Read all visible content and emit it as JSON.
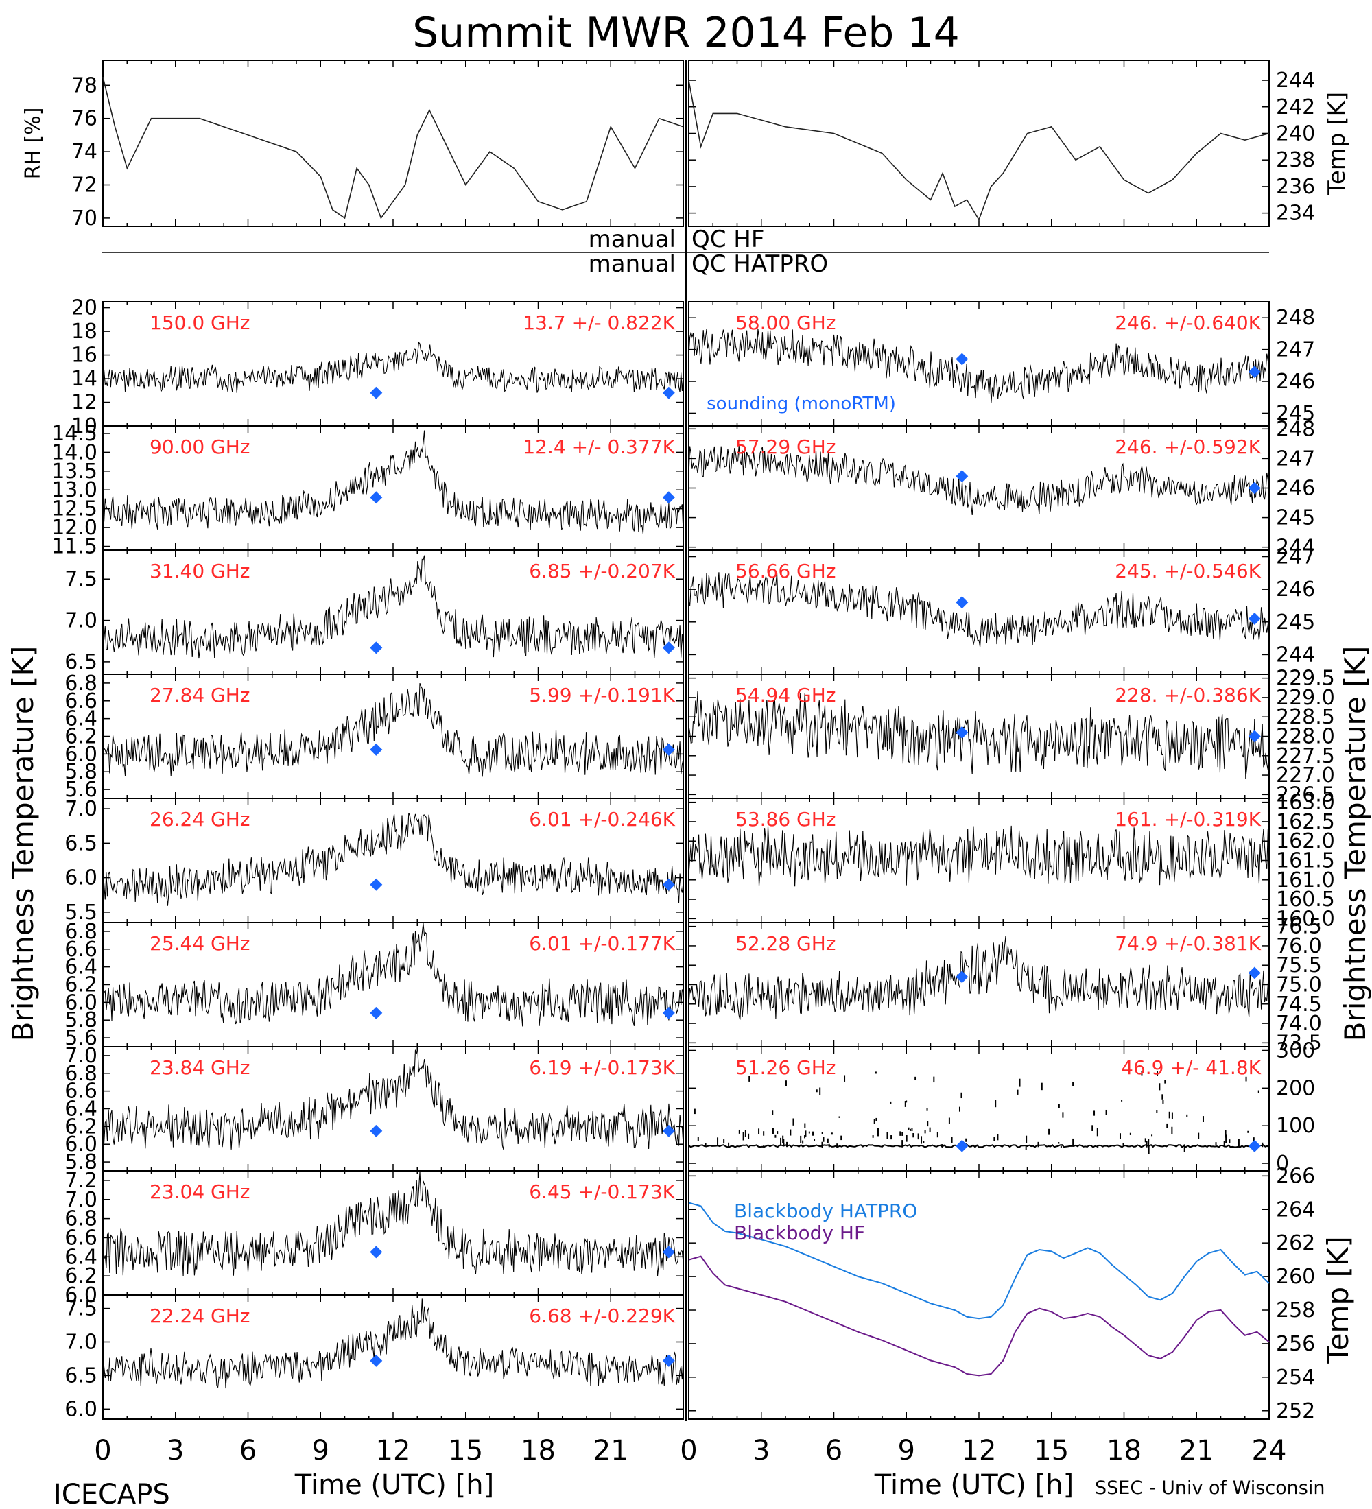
{
  "title": "Summit MWR 2014 Feb 14",
  "footer": {
    "left": "ICECAPS",
    "right": "SSEC - Univ of Wisconsin"
  },
  "axes": {
    "left_ylabel": "Brightness Temperature [K]",
    "right_ylabel": "Brightness Temperature [K]",
    "xlabel": "Time (UTC) [h]",
    "xticks": [
      "0",
      "3",
      "6",
      "9",
      "12",
      "15",
      "18",
      "21",
      "24"
    ],
    "xticks_left": [
      "0",
      "3",
      "6",
      "9",
      "12",
      "15",
      "18",
      "21"
    ]
  },
  "qc": {
    "line1_left": "manual",
    "line1_right": "QC HF",
    "line2_left": "manual",
    "line2_right": "QC HATPRO"
  },
  "colors": {
    "label": "#ff2a2a",
    "marker": "#1a66ff",
    "hatpro": "#1a7de0",
    "hf": "#6b1a8a",
    "trace": "#000000"
  },
  "chart_data": [
    {
      "type": "line",
      "id": "rh",
      "ylabel": "RH [%]",
      "ylim": [
        69.5,
        79.5
      ],
      "yticks": [
        70,
        72,
        74,
        76,
        78
      ],
      "xlim": [
        0,
        24
      ],
      "series": [
        {
          "x": [
            0,
            0.5,
            1,
            2,
            4,
            6,
            8,
            9,
            9.5,
            10,
            10.5,
            11,
            11.5,
            12,
            12.5,
            13,
            13.5,
            14,
            15,
            16,
            17,
            18,
            19,
            20,
            21,
            22,
            23,
            24
          ],
          "y": [
            78.5,
            75.5,
            73,
            76,
            76,
            75,
            74,
            72.5,
            70.5,
            70,
            73,
            72,
            70,
            71,
            72,
            75,
            76.5,
            75,
            72,
            74,
            73,
            71,
            70.5,
            71,
            75.5,
            73,
            76,
            75.5
          ]
        }
      ]
    },
    {
      "type": "line",
      "id": "temp",
      "ylabel": "Temp [K]",
      "ylim": [
        233,
        245.5
      ],
      "yticks": [
        234,
        236,
        238,
        240,
        242,
        244
      ],
      "xlim": [
        0,
        24
      ],
      "series": [
        {
          "x": [
            0,
            0.5,
            1,
            2,
            4,
            6,
            8,
            9,
            10,
            10.5,
            11,
            11.5,
            12,
            12.5,
            13,
            14,
            15,
            16,
            17,
            18,
            19,
            20,
            21,
            22,
            23,
            24
          ],
          "y": [
            244,
            239,
            241.5,
            241.5,
            240.5,
            240,
            238.5,
            236.5,
            235,
            237,
            234.5,
            235,
            233.5,
            236,
            237,
            240,
            240.5,
            238,
            239,
            236.5,
            235.5,
            236.5,
            238.5,
            240,
            239.5,
            240
          ]
        }
      ]
    },
    {
      "type": "line",
      "id": "ch150",
      "freq_label": "150.0 GHz",
      "stat_label": "13.7 +/- 0.822K",
      "ylim": [
        10,
        20.5
      ],
      "yticks": [
        "10",
        "12",
        "14",
        "16",
        "18",
        "20"
      ],
      "xlim": [
        0,
        24
      ],
      "base": [
        14.0,
        14.0,
        14.0,
        14.2,
        16.5,
        14.0,
        14.0,
        14.0,
        14.0
      ],
      "noise": 1.8,
      "markers": [
        {
          "x": 11.3,
          "y": 12.8
        },
        {
          "x": 23.4,
          "y": 12.8
        }
      ]
    },
    {
      "type": "line",
      "id": "ch90",
      "freq_label": "90.00 GHz",
      "stat_label": "12.4 +/- 0.377K",
      "ylim": [
        11.4,
        14.7
      ],
      "yticks": [
        "11.5",
        "12.0",
        "12.5",
        "13.0",
        "13.5",
        "14.0",
        "14.5"
      ],
      "xlim": [
        0,
        24
      ],
      "base": [
        12.4,
        12.4,
        12.4,
        12.6,
        14.3,
        12.4,
        12.4,
        12.3,
        12.3
      ],
      "noise": 0.7,
      "markers": [
        {
          "x": 11.3,
          "y": 12.8
        },
        {
          "x": 23.4,
          "y": 12.8
        }
      ]
    },
    {
      "type": "line",
      "id": "ch31",
      "freq_label": "31.40 GHz",
      "stat_label": "6.85 +/-0.207K",
      "ylim": [
        6.35,
        7.85
      ],
      "yticks": [
        "6.5",
        "7.0",
        "7.5"
      ],
      "xlim": [
        0,
        24
      ],
      "base": [
        6.8,
        6.8,
        6.8,
        6.9,
        7.6,
        6.8,
        6.8,
        6.8,
        6.8
      ],
      "noise": 0.4,
      "markers": [
        {
          "x": 11.3,
          "y": 6.67
        },
        {
          "x": 23.4,
          "y": 6.67
        }
      ]
    },
    {
      "type": "line",
      "id": "ch27",
      "freq_label": "27.84 GHz",
      "stat_label": "5.99 +/-0.191K",
      "ylim": [
        5.5,
        6.9
      ],
      "yticks": [
        "5.6",
        "5.8",
        "6.0",
        "6.2",
        "6.4",
        "6.6",
        "6.8"
      ],
      "xlim": [
        0,
        24
      ],
      "base": [
        6.0,
        6.0,
        6.0,
        6.1,
        6.7,
        6.0,
        6.0,
        6.0,
        6.0
      ],
      "noise": 0.4,
      "markers": [
        {
          "x": 11.3,
          "y": 6.05
        },
        {
          "x": 23.4,
          "y": 6.05
        }
      ]
    },
    {
      "type": "line",
      "id": "ch26",
      "freq_label": "26.24 GHz",
      "stat_label": "6.01 +/-0.246K",
      "ylim": [
        5.35,
        7.15
      ],
      "yticks": [
        "5.5",
        "6.0",
        "6.5",
        "7.0"
      ],
      "xlim": [
        0,
        24
      ],
      "base": [
        5.9,
        5.9,
        6.0,
        6.2,
        6.9,
        6.0,
        6.0,
        6.0,
        5.9
      ],
      "noise": 0.45,
      "markers": [
        {
          "x": 11.3,
          "y": 5.9
        },
        {
          "x": 23.4,
          "y": 5.9
        }
      ]
    },
    {
      "type": "line",
      "id": "ch25",
      "freq_label": "25.44 GHz",
      "stat_label": "6.01 +/-0.177K",
      "ylim": [
        5.5,
        6.9
      ],
      "yticks": [
        "5.6",
        "5.8",
        "6.0",
        "6.2",
        "6.4",
        "6.6",
        "6.8"
      ],
      "xlim": [
        0,
        24
      ],
      "base": [
        6.0,
        6.0,
        6.0,
        6.1,
        6.7,
        6.0,
        6.0,
        6.0,
        6.0
      ],
      "noise": 0.4,
      "markers": [
        {
          "x": 11.3,
          "y": 5.88
        },
        {
          "x": 23.4,
          "y": 5.88
        }
      ]
    },
    {
      "type": "line",
      "id": "ch23_84",
      "freq_label": "23.84 GHz",
      "stat_label": "6.19 +/-0.173K",
      "ylim": [
        5.7,
        7.1
      ],
      "yticks": [
        "5.8",
        "6.0",
        "6.2",
        "6.4",
        "6.6",
        "6.8",
        "7.0"
      ],
      "xlim": [
        0,
        24
      ],
      "base": [
        6.2,
        6.2,
        6.2,
        6.3,
        6.9,
        6.2,
        6.2,
        6.2,
        6.2
      ],
      "noise": 0.4,
      "markers": [
        {
          "x": 11.3,
          "y": 6.15
        },
        {
          "x": 23.4,
          "y": 6.15
        }
      ]
    },
    {
      "type": "line",
      "id": "ch23_04",
      "freq_label": "23.04 GHz",
      "stat_label": "6.45 +/-0.173K",
      "ylim": [
        6.0,
        7.3
      ],
      "yticks": [
        "6.0",
        "6.2",
        "6.4",
        "6.6",
        "6.8",
        "7.0",
        "7.2"
      ],
      "xlim": [
        0,
        24
      ],
      "base": [
        6.45,
        6.45,
        6.45,
        6.55,
        7.1,
        6.45,
        6.45,
        6.45,
        6.45
      ],
      "noise": 0.38,
      "markers": [
        {
          "x": 11.3,
          "y": 6.45
        },
        {
          "x": 23.4,
          "y": 6.45
        }
      ]
    },
    {
      "type": "line",
      "id": "ch22",
      "freq_label": "22.24 GHz",
      "stat_label": "6.68 +/-0.229K",
      "ylim": [
        5.85,
        7.7
      ],
      "yticks": [
        "6.0",
        "6.5",
        "7.0",
        "7.5"
      ],
      "xlim": [
        0,
        24
      ],
      "base": [
        6.6,
        6.6,
        6.6,
        6.7,
        7.4,
        6.7,
        6.7,
        6.6,
        6.6
      ],
      "noise": 0.45,
      "markers": [
        {
          "x": 11.3,
          "y": 6.72
        },
        {
          "x": 23.4,
          "y": 6.72
        }
      ]
    },
    {
      "type": "line",
      "id": "ch58",
      "freq_label": "58.00 GHz",
      "stat_label": "246. +/-0.640K",
      "ylim": [
        244.6,
        248.5
      ],
      "yticks": [
        "245",
        "246",
        "247",
        "248"
      ],
      "xlim": [
        0,
        24
      ],
      "base": [
        247.1,
        247.1,
        247.0,
        246.6,
        245.9,
        246.0,
        246.7,
        246.1,
        246.4
      ],
      "noise": 0.9,
      "markers": [
        {
          "x": 11.3,
          "y": 246.7
        },
        {
          "x": 23.4,
          "y": 246.3
        }
      ]
    },
    {
      "type": "line",
      "id": "ch57",
      "freq_label": "57.29 GHz",
      "stat_label": "246. +/-0.592K",
      "ylim": [
        243.9,
        248.1
      ],
      "yticks": [
        "244",
        "245",
        "246",
        "247",
        "248"
      ],
      "xlim": [
        0,
        24
      ],
      "base": [
        246.9,
        246.9,
        246.7,
        246.4,
        245.6,
        245.7,
        246.4,
        245.9,
        246.0
      ],
      "noise": 0.9,
      "markers": [
        {
          "x": 11.3,
          "y": 246.4
        },
        {
          "x": 23.4,
          "y": 246.0
        }
      ]
    },
    {
      "type": "line",
      "id": "ch56",
      "freq_label": "56.66 GHz",
      "stat_label": "245. +/-0.546K",
      "ylim": [
        243.4,
        247.2
      ],
      "yticks": [
        "244",
        "245",
        "246",
        "247"
      ],
      "xlim": [
        0,
        24
      ],
      "base": [
        246.0,
        246.0,
        245.8,
        245.5,
        244.7,
        244.9,
        245.4,
        245.0,
        245.0
      ],
      "noise": 0.9,
      "markers": [
        {
          "x": 11.3,
          "y": 245.6
        },
        {
          "x": 23.4,
          "y": 245.1
        }
      ]
    },
    {
      "type": "line",
      "id": "ch54",
      "freq_label": "54.94 GHz",
      "stat_label": "228. +/-0.386K",
      "ylim": [
        226.4,
        229.6
      ],
      "yticks": [
        "226.5",
        "227.0",
        "227.5",
        "228.0",
        "228.5",
        "229.0",
        "229.5"
      ],
      "xlim": [
        0,
        24
      ],
      "base": [
        228.5,
        228.4,
        228.2,
        228.0,
        227.9,
        227.9,
        227.9,
        227.8,
        227.7
      ],
      "noise": 1.3,
      "markers": [
        {
          "x": 11.3,
          "y": 228.1
        },
        {
          "x": 23.4,
          "y": 228.0
        }
      ]
    },
    {
      "type": "line",
      "id": "ch53",
      "freq_label": "53.86 GHz",
      "stat_label": "161. +/-0.319K",
      "ylim": [
        159.9,
        163.1
      ],
      "yticks": [
        "160.0",
        "160.5",
        "161.0",
        "161.5",
        "162.0",
        "162.5",
        "163.0"
      ],
      "xlim": [
        0,
        24
      ],
      "base": [
        161.6,
        161.6,
        161.6,
        161.6,
        161.8,
        161.6,
        161.6,
        161.6,
        161.6
      ],
      "noise": 1.2,
      "markers": []
    },
    {
      "type": "line",
      "id": "ch52",
      "freq_label": "52.28 GHz",
      "stat_label": "74.9 +/-0.381K",
      "ylim": [
        73.4,
        76.6
      ],
      "yticks": [
        "73.5",
        "74.0",
        "74.5",
        "75.0",
        "75.5",
        "76.0",
        "76.5"
      ],
      "xlim": [
        0,
        24
      ],
      "base": [
        74.7,
        74.7,
        74.7,
        74.8,
        75.7,
        74.9,
        74.9,
        74.8,
        74.8
      ],
      "noise": 1.0,
      "markers": [
        {
          "x": 11.3,
          "y": 75.2
        },
        {
          "x": 23.4,
          "y": 75.3
        }
      ]
    },
    {
      "type": "scatter",
      "id": "ch51",
      "freq_label": "51.26 GHz",
      "stat_label": "46.9 +/- 41.8K",
      "ylim": [
        -20,
        310
      ],
      "yticks": [
        "0",
        "100",
        "200",
        "300"
      ],
      "xlim": [
        0,
        24
      ],
      "baseline": 46,
      "markers": [
        {
          "x": 11.3,
          "y": 46
        },
        {
          "x": 23.4,
          "y": 46
        }
      ]
    },
    {
      "type": "line",
      "id": "blackbody",
      "ylabel": "Temp [K]",
      "ylim": [
        251.5,
        266.3
      ],
      "yticks": [
        252,
        254,
        256,
        258,
        260,
        262,
        264,
        266
      ],
      "xlim": [
        0,
        24
      ],
      "series": [
        {
          "name": "Blackbody HATPRO",
          "x": [
            0,
            0.5,
            1,
            1.5,
            2,
            3,
            4,
            5,
            6,
            7,
            8,
            9,
            10,
            11,
            11.5,
            12,
            12.5,
            13,
            13.5,
            14,
            14.5,
            15,
            15.5,
            16,
            16.5,
            17,
            17.5,
            18,
            18.5,
            19,
            19.5,
            20,
            20.5,
            21,
            21.5,
            22,
            22.5,
            23,
            23.5,
            24
          ],
          "y": [
            264.4,
            264.2,
            263.2,
            262.7,
            262.6,
            262.2,
            261.8,
            261.2,
            260.6,
            260.0,
            259.6,
            259.0,
            258.4,
            258.0,
            257.6,
            257.5,
            257.6,
            258.3,
            259.9,
            261.3,
            261.6,
            261.5,
            261.1,
            261.4,
            261.7,
            261.4,
            260.7,
            260.1,
            259.5,
            258.8,
            258.6,
            259.0,
            260.0,
            260.9,
            261.4,
            261.6,
            260.8,
            260.1,
            260.3,
            259.6
          ]
        },
        {
          "name": "Blackbody HF",
          "x": [
            0,
            0.5,
            1,
            1.5,
            2,
            3,
            4,
            5,
            6,
            7,
            8,
            9,
            10,
            11,
            11.5,
            12,
            12.5,
            13,
            13.5,
            14,
            14.5,
            15,
            15.5,
            16,
            16.5,
            17,
            17.5,
            18,
            18.5,
            19,
            19.5,
            20,
            20.5,
            21,
            21.5,
            22,
            22.5,
            23,
            23.5,
            24
          ],
          "y": [
            261.0,
            261.2,
            260.2,
            259.5,
            259.3,
            258.9,
            258.5,
            257.9,
            257.3,
            256.7,
            256.2,
            255.6,
            255.0,
            254.6,
            254.2,
            254.1,
            254.2,
            255.0,
            256.7,
            257.8,
            258.1,
            257.9,
            257.5,
            257.6,
            257.8,
            257.6,
            257.0,
            256.5,
            255.9,
            255.3,
            255.1,
            255.5,
            256.4,
            257.4,
            257.9,
            258.0,
            257.2,
            256.5,
            256.7,
            256.1
          ]
        }
      ]
    }
  ],
  "annotations": {
    "sounding": "sounding (monoRTM)"
  }
}
